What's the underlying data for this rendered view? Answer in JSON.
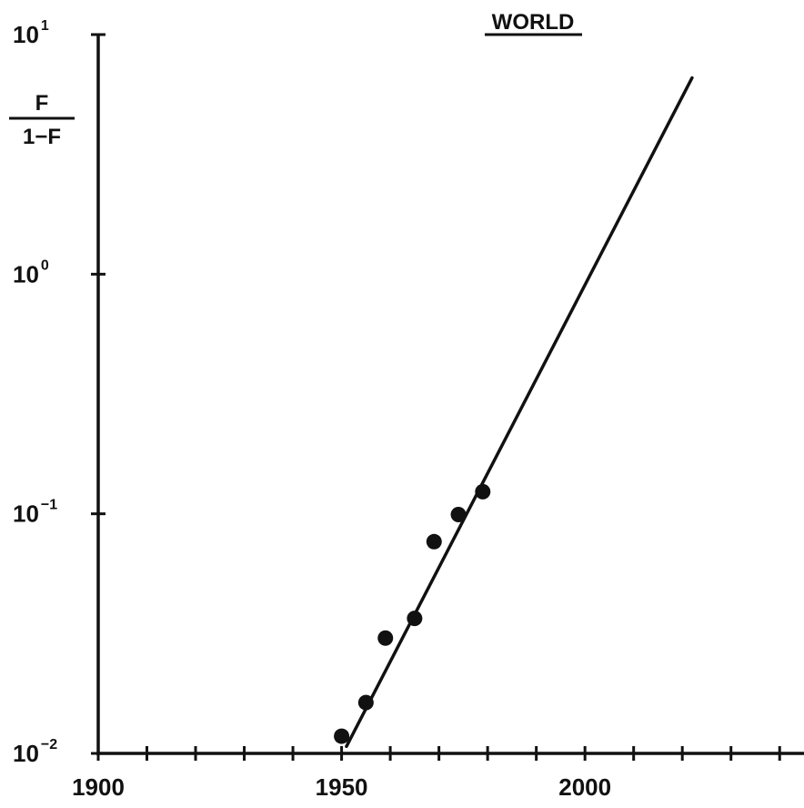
{
  "chart_data": {
    "type": "scatter",
    "title": "WORLD",
    "ylabel": {
      "numerator": "F",
      "denominator": "1−F"
    },
    "xlabel": "",
    "xlim": [
      1900,
      2045
    ],
    "ylim": [
      0.01,
      10
    ],
    "y_scale": "log",
    "x_ticks": [
      1900,
      1910,
      1920,
      1930,
      1940,
      1950,
      1960,
      1970,
      1980,
      1990,
      2000,
      2010,
      2020,
      2030,
      2040
    ],
    "x_tick_labels": [
      {
        "value": 1900,
        "label": "1900"
      },
      {
        "value": 1950,
        "label": "1950"
      },
      {
        "value": 2000,
        "label": "2000"
      }
    ],
    "y_ticks": [
      {
        "value": 10,
        "base": "10",
        "exp": "1"
      },
      {
        "value": 1,
        "base": "10",
        "exp": "0"
      },
      {
        "value": 0.1,
        "base": "10",
        "exp": "−1"
      },
      {
        "value": 0.01,
        "base": "10",
        "exp": "−2"
      }
    ],
    "points": [
      {
        "x": 1950,
        "y": 0.0118
      },
      {
        "x": 1955,
        "y": 0.0163
      },
      {
        "x": 1959,
        "y": 0.0303
      },
      {
        "x": 1965,
        "y": 0.0366
      },
      {
        "x": 1969,
        "y": 0.0765
      },
      {
        "x": 1974,
        "y": 0.0993
      },
      {
        "x": 1979,
        "y": 0.1237
      }
    ],
    "fit_line": [
      {
        "x": 1951,
        "y": 0.0107
      },
      {
        "x": 2022,
        "y": 6.6
      }
    ],
    "grid": false,
    "colors": {
      "ink": "#111111",
      "background": "#ffffff"
    }
  }
}
